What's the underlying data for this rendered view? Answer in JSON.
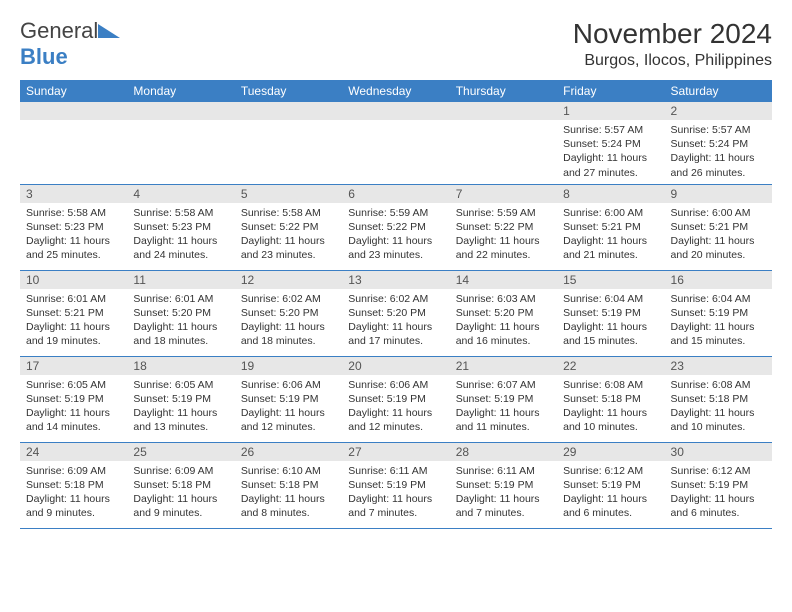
{
  "logo": {
    "text_a": "General",
    "text_b": "Blue"
  },
  "title": "November 2024",
  "location": "Burgos, Ilocos, Philippines",
  "colors": {
    "header_bg": "#3b7fc4",
    "header_fg": "#ffffff",
    "daynum_bg": "#e7e7e7",
    "border": "#3b7fc4",
    "logo_blue": "#3b7fc4"
  },
  "weekdays": [
    "Sunday",
    "Monday",
    "Tuesday",
    "Wednesday",
    "Thursday",
    "Friday",
    "Saturday"
  ],
  "weeks": [
    [
      {
        "blank": true
      },
      {
        "blank": true
      },
      {
        "blank": true
      },
      {
        "blank": true
      },
      {
        "blank": true
      },
      {
        "n": "1",
        "sr": "Sunrise: 5:57 AM",
        "ss": "Sunset: 5:24 PM",
        "dl": "Daylight: 11 hours and 27 minutes."
      },
      {
        "n": "2",
        "sr": "Sunrise: 5:57 AM",
        "ss": "Sunset: 5:24 PM",
        "dl": "Daylight: 11 hours and 26 minutes."
      }
    ],
    [
      {
        "n": "3",
        "sr": "Sunrise: 5:58 AM",
        "ss": "Sunset: 5:23 PM",
        "dl": "Daylight: 11 hours and 25 minutes."
      },
      {
        "n": "4",
        "sr": "Sunrise: 5:58 AM",
        "ss": "Sunset: 5:23 PM",
        "dl": "Daylight: 11 hours and 24 minutes."
      },
      {
        "n": "5",
        "sr": "Sunrise: 5:58 AM",
        "ss": "Sunset: 5:22 PM",
        "dl": "Daylight: 11 hours and 23 minutes."
      },
      {
        "n": "6",
        "sr": "Sunrise: 5:59 AM",
        "ss": "Sunset: 5:22 PM",
        "dl": "Daylight: 11 hours and 23 minutes."
      },
      {
        "n": "7",
        "sr": "Sunrise: 5:59 AM",
        "ss": "Sunset: 5:22 PM",
        "dl": "Daylight: 11 hours and 22 minutes."
      },
      {
        "n": "8",
        "sr": "Sunrise: 6:00 AM",
        "ss": "Sunset: 5:21 PM",
        "dl": "Daylight: 11 hours and 21 minutes."
      },
      {
        "n": "9",
        "sr": "Sunrise: 6:00 AM",
        "ss": "Sunset: 5:21 PM",
        "dl": "Daylight: 11 hours and 20 minutes."
      }
    ],
    [
      {
        "n": "10",
        "sr": "Sunrise: 6:01 AM",
        "ss": "Sunset: 5:21 PM",
        "dl": "Daylight: 11 hours and 19 minutes."
      },
      {
        "n": "11",
        "sr": "Sunrise: 6:01 AM",
        "ss": "Sunset: 5:20 PM",
        "dl": "Daylight: 11 hours and 18 minutes."
      },
      {
        "n": "12",
        "sr": "Sunrise: 6:02 AM",
        "ss": "Sunset: 5:20 PM",
        "dl": "Daylight: 11 hours and 18 minutes."
      },
      {
        "n": "13",
        "sr": "Sunrise: 6:02 AM",
        "ss": "Sunset: 5:20 PM",
        "dl": "Daylight: 11 hours and 17 minutes."
      },
      {
        "n": "14",
        "sr": "Sunrise: 6:03 AM",
        "ss": "Sunset: 5:20 PM",
        "dl": "Daylight: 11 hours and 16 minutes."
      },
      {
        "n": "15",
        "sr": "Sunrise: 6:04 AM",
        "ss": "Sunset: 5:19 PM",
        "dl": "Daylight: 11 hours and 15 minutes."
      },
      {
        "n": "16",
        "sr": "Sunrise: 6:04 AM",
        "ss": "Sunset: 5:19 PM",
        "dl": "Daylight: 11 hours and 15 minutes."
      }
    ],
    [
      {
        "n": "17",
        "sr": "Sunrise: 6:05 AM",
        "ss": "Sunset: 5:19 PM",
        "dl": "Daylight: 11 hours and 14 minutes."
      },
      {
        "n": "18",
        "sr": "Sunrise: 6:05 AM",
        "ss": "Sunset: 5:19 PM",
        "dl": "Daylight: 11 hours and 13 minutes."
      },
      {
        "n": "19",
        "sr": "Sunrise: 6:06 AM",
        "ss": "Sunset: 5:19 PM",
        "dl": "Daylight: 11 hours and 12 minutes."
      },
      {
        "n": "20",
        "sr": "Sunrise: 6:06 AM",
        "ss": "Sunset: 5:19 PM",
        "dl": "Daylight: 11 hours and 12 minutes."
      },
      {
        "n": "21",
        "sr": "Sunrise: 6:07 AM",
        "ss": "Sunset: 5:19 PM",
        "dl": "Daylight: 11 hours and 11 minutes."
      },
      {
        "n": "22",
        "sr": "Sunrise: 6:08 AM",
        "ss": "Sunset: 5:18 PM",
        "dl": "Daylight: 11 hours and 10 minutes."
      },
      {
        "n": "23",
        "sr": "Sunrise: 6:08 AM",
        "ss": "Sunset: 5:18 PM",
        "dl": "Daylight: 11 hours and 10 minutes."
      }
    ],
    [
      {
        "n": "24",
        "sr": "Sunrise: 6:09 AM",
        "ss": "Sunset: 5:18 PM",
        "dl": "Daylight: 11 hours and 9 minutes."
      },
      {
        "n": "25",
        "sr": "Sunrise: 6:09 AM",
        "ss": "Sunset: 5:18 PM",
        "dl": "Daylight: 11 hours and 9 minutes."
      },
      {
        "n": "26",
        "sr": "Sunrise: 6:10 AM",
        "ss": "Sunset: 5:18 PM",
        "dl": "Daylight: 11 hours and 8 minutes."
      },
      {
        "n": "27",
        "sr": "Sunrise: 6:11 AM",
        "ss": "Sunset: 5:19 PM",
        "dl": "Daylight: 11 hours and 7 minutes."
      },
      {
        "n": "28",
        "sr": "Sunrise: 6:11 AM",
        "ss": "Sunset: 5:19 PM",
        "dl": "Daylight: 11 hours and 7 minutes."
      },
      {
        "n": "29",
        "sr": "Sunrise: 6:12 AM",
        "ss": "Sunset: 5:19 PM",
        "dl": "Daylight: 11 hours and 6 minutes."
      },
      {
        "n": "30",
        "sr": "Sunrise: 6:12 AM",
        "ss": "Sunset: 5:19 PM",
        "dl": "Daylight: 11 hours and 6 minutes."
      }
    ]
  ]
}
